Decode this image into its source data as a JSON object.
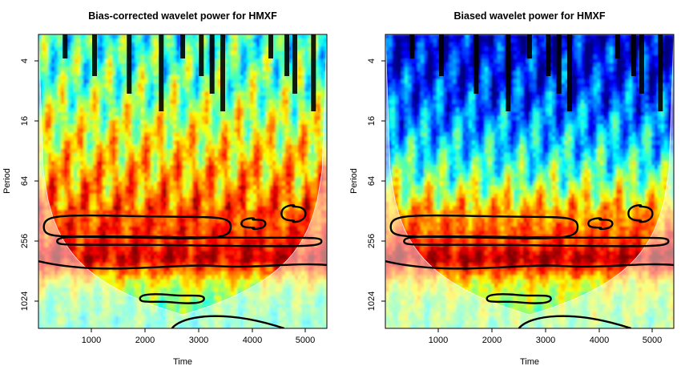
{
  "chart_data": [
    {
      "type": "heatmap",
      "title": "Bias-corrected wavelet power for HMXF",
      "xlabel": "Time",
      "ylabel": "Period",
      "x_ticks": [
        1000,
        2000,
        3000,
        4000,
        5000
      ],
      "y_ticks": [
        4,
        16,
        64,
        256,
        1024
      ],
      "y_scale": "log2",
      "xlim": [
        0,
        5400
      ],
      "ylim": [
        2,
        2048
      ],
      "colormap": [
        "#00007f",
        "#0000ff",
        "#007fff",
        "#00ffff",
        "#7fff7f",
        "#ffff00",
        "#ff7f00",
        "#ff0000",
        "#7f0000"
      ],
      "power_profile": [
        {
          "period": 2,
          "power": 0.42
        },
        {
          "period": 4,
          "power": 0.45
        },
        {
          "period": 8,
          "power": 0.5
        },
        {
          "period": 16,
          "power": 0.58
        },
        {
          "period": 32,
          "power": 0.66
        },
        {
          "period": 64,
          "power": 0.72
        },
        {
          "period": 128,
          "power": 0.8
        },
        {
          "period": 256,
          "power": 0.85
        },
        {
          "period": 400,
          "power": 0.93
        },
        {
          "period": 700,
          "power": 0.6
        },
        {
          "period": 1024,
          "power": 0.5
        },
        {
          "period": 2048,
          "power": 0.45
        }
      ],
      "cone_of_influence": true,
      "significance_contours": true
    },
    {
      "type": "heatmap",
      "title": "Biased wavelet power for HMXF",
      "xlabel": "Time",
      "ylabel": "Period",
      "x_ticks": [
        1000,
        2000,
        3000,
        4000,
        5000
      ],
      "y_ticks": [
        4,
        16,
        64,
        256,
        1024
      ],
      "y_scale": "log2",
      "xlim": [
        0,
        5400
      ],
      "ylim": [
        2,
        2048
      ],
      "colormap": [
        "#00007f",
        "#0000ff",
        "#007fff",
        "#00ffff",
        "#7fff7f",
        "#ffff00",
        "#ff7f00",
        "#ff0000",
        "#7f0000"
      ],
      "power_profile": [
        {
          "period": 2,
          "power": 0.08
        },
        {
          "period": 4,
          "power": 0.12
        },
        {
          "period": 8,
          "power": 0.18
        },
        {
          "period": 16,
          "power": 0.26
        },
        {
          "period": 32,
          "power": 0.36
        },
        {
          "period": 64,
          "power": 0.5
        },
        {
          "period": 128,
          "power": 0.72
        },
        {
          "period": 256,
          "power": 0.82
        },
        {
          "period": 400,
          "power": 0.96
        },
        {
          "period": 700,
          "power": 0.62
        },
        {
          "period": 1024,
          "power": 0.55
        },
        {
          "period": 2048,
          "power": 0.5
        }
      ],
      "cone_of_influence": true,
      "significance_contours": true
    }
  ]
}
